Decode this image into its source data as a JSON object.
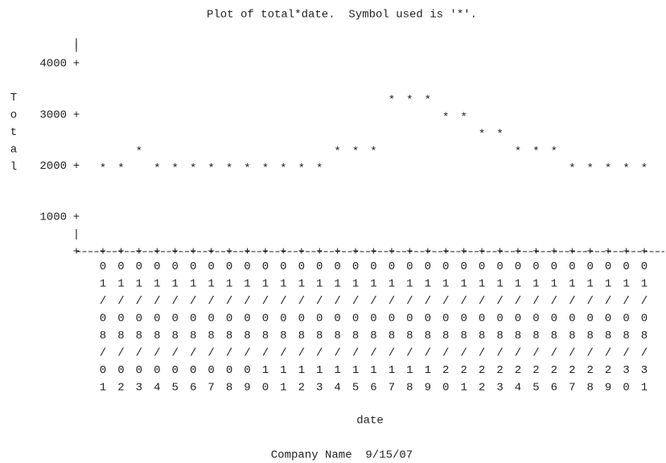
{
  "chart_data": {
    "type": "scatter",
    "title": "Plot of total*date.  Symbol used is '*'.",
    "symbol": "*",
    "y_label": "Total",
    "x_label": "date",
    "footer": "Company Name  9/15/07",
    "categories": [
      "01/08/01",
      "01/08/02",
      "01/08/03",
      "01/08/04",
      "01/08/05",
      "01/08/06",
      "01/08/07",
      "01/08/08",
      "01/08/09",
      "01/08/10",
      "01/08/11",
      "01/08/12",
      "01/08/13",
      "01/08/14",
      "01/08/15",
      "01/08/16",
      "01/08/17",
      "01/08/18",
      "01/08/19",
      "01/08/20",
      "01/08/21",
      "01/08/22",
      "01/08/23",
      "01/08/24",
      "01/08/25",
      "01/08/26",
      "01/08/27",
      "01/08/28",
      "01/08/29",
      "01/08/30",
      "01/08/31"
    ],
    "values": [
      2000,
      2000,
      2333,
      2000,
      2000,
      2000,
      2000,
      2000,
      2000,
      2000,
      2000,
      2000,
      2000,
      2333,
      2333,
      2333,
      3333,
      3333,
      3333,
      3000,
      3000,
      2667,
      2667,
      2333,
      2333,
      2333,
      2000,
      2000,
      2000,
      2000,
      2000
    ],
    "ylim": [
      325,
      4455
    ],
    "yticks": [
      1000,
      2000,
      3000,
      4000
    ]
  }
}
